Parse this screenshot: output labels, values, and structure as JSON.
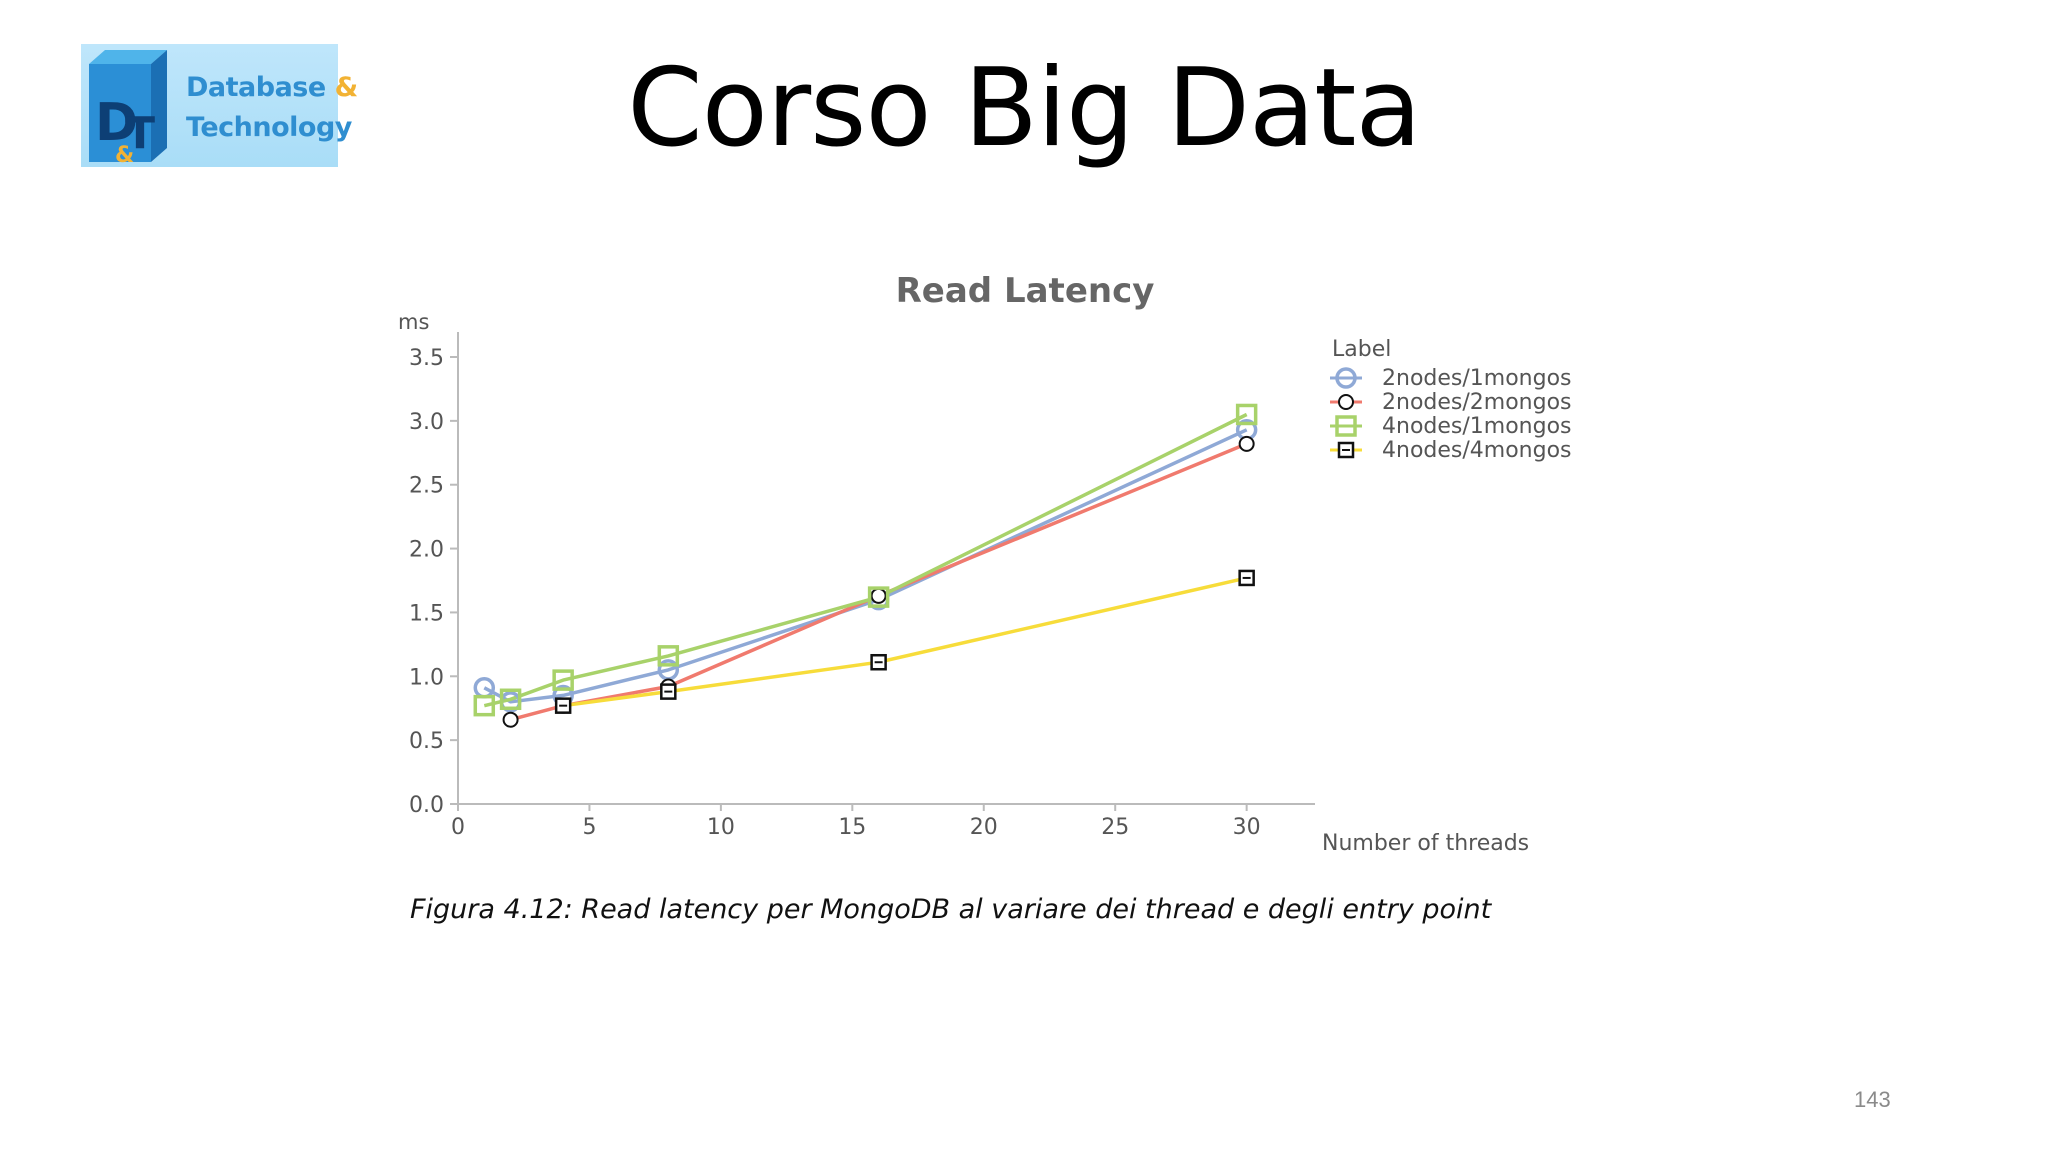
{
  "slide": {
    "title": "Corso Big Data",
    "page_number": "143"
  },
  "logo": {
    "mark_text": "D&T",
    "line1": "Database",
    "line1_amp": "&",
    "line2": "Technology"
  },
  "caption": "Figura 4.12: Read latency per MongoDB al variare dei thread e degli entry point",
  "colors": {
    "axis": "#bbbbbb",
    "text": "#555555",
    "title": "#666666"
  },
  "chart_data": {
    "type": "line",
    "title": "Read Latency",
    "xlabel": "Number of threads",
    "ylabel": "ms",
    "xlim": [
      0,
      32
    ],
    "ylim": [
      0,
      3.5
    ],
    "x_ticks": [
      "0",
      "5",
      "10",
      "15",
      "20",
      "25",
      "30"
    ],
    "y_ticks": [
      "0.0",
      "0.5",
      "1.0",
      "1.5",
      "2.0",
      "2.5",
      "3.0",
      "3.5"
    ],
    "legend_title": "Label",
    "legend_position": "top-right",
    "grid": false,
    "series": [
      {
        "name": "2nodes/1mongos",
        "color": "#8fa9d6",
        "marker": "circle",
        "x": [
          1,
          2,
          4,
          8,
          16,
          30
        ],
        "values": [
          0.91,
          0.8,
          0.85,
          1.05,
          1.6,
          2.93
        ]
      },
      {
        "name": "2nodes/2mongos",
        "color": "#f07a6e",
        "marker": "circle-black",
        "x": [
          2,
          4,
          8,
          16,
          30
        ],
        "values": [
          0.66,
          0.77,
          0.92,
          1.63,
          2.82
        ]
      },
      {
        "name": "4nodes/1mongos",
        "color": "#a8d26a",
        "marker": "square",
        "x": [
          1,
          2,
          4,
          8,
          16,
          30
        ],
        "values": [
          0.77,
          0.82,
          0.97,
          1.16,
          1.62,
          3.05
        ]
      },
      {
        "name": "4nodes/4mongos",
        "color": "#f7dc3a",
        "marker": "square-black",
        "x": [
          4,
          8,
          16,
          30
        ],
        "values": [
          0.77,
          0.88,
          1.11,
          1.77
        ]
      }
    ]
  }
}
